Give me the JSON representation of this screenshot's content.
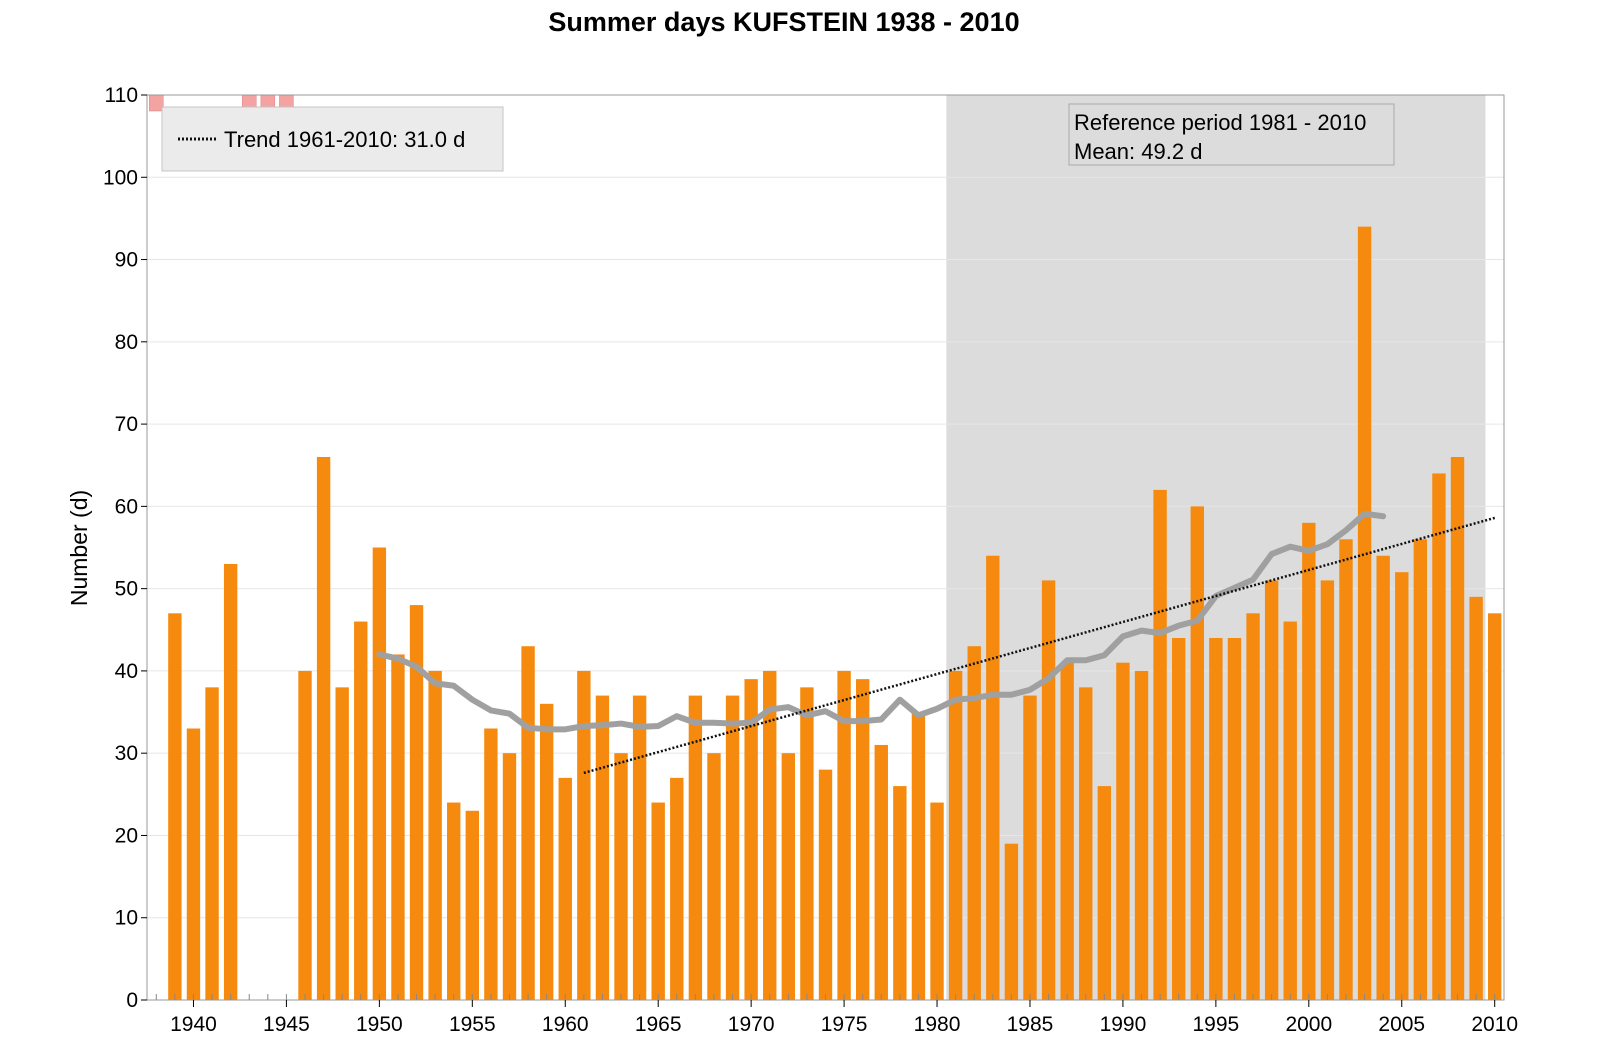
{
  "chart_data": {
    "type": "bar",
    "title": "Summer days KUFSTEIN 1938 - 2010",
    "ylabel": "Number (d)",
    "xlabel": "",
    "xlim": [
      1938,
      2010
    ],
    "ylim": [
      0,
      110
    ],
    "y_ticks": [
      0,
      10,
      20,
      30,
      40,
      50,
      60,
      70,
      80,
      90,
      100,
      110
    ],
    "x_ticks": [
      1940,
      1945,
      1950,
      1955,
      1960,
      1965,
      1970,
      1975,
      1980,
      1985,
      1990,
      1995,
      2000,
      2005,
      2010
    ],
    "grid": true,
    "colors": {
      "bars": "#f58a0f",
      "reference_shade": "#dcdcdc",
      "smoothed_line": "#a0a0a0",
      "trend_line": "#111111",
      "missing_marker": "#f4a3a3"
    },
    "series": [
      {
        "type": "bar",
        "x": [
          1939,
          1940,
          1941,
          1942,
          1943,
          1944,
          1945,
          1946,
          1947,
          1948,
          1949,
          1950,
          1951,
          1952,
          1953,
          1954,
          1955,
          1956,
          1957,
          1958,
          1959,
          1960,
          1961,
          1962,
          1963,
          1964,
          1965,
          1966,
          1967,
          1968,
          1969,
          1970,
          1971,
          1972,
          1973,
          1974,
          1975,
          1976,
          1977,
          1978,
          1979,
          1980,
          1981,
          1982,
          1983,
          1984,
          1985,
          1986,
          1987,
          1988,
          1989,
          1990,
          1991,
          1992,
          1993,
          1994,
          1995,
          1996,
          1997,
          1998,
          1999,
          2000,
          2001,
          2002,
          2003,
          2004,
          2005,
          2006,
          2007,
          2008,
          2009,
          2010
        ],
        "values": [
          47,
          33,
          38,
          53,
          null,
          null,
          null,
          40,
          66,
          38,
          46,
          55,
          42,
          48,
          40,
          24,
          23,
          33,
          30,
          43,
          36,
          27,
          40,
          37,
          30,
          37,
          24,
          27,
          37,
          30,
          37,
          39,
          40,
          30,
          38,
          28,
          40,
          39,
          31,
          26,
          35,
          24,
          40,
          43,
          54,
          19,
          37,
          51,
          41,
          38,
          26,
          41,
          40,
          62,
          44,
          60,
          44,
          44,
          47,
          51,
          46,
          58,
          51,
          56,
          94,
          54,
          52,
          56,
          64,
          66,
          49,
          47
        ]
      },
      {
        "type": "line",
        "style": "smoothed",
        "x": [
          1950,
          1951,
          1952,
          1953,
          1954,
          1955,
          1956,
          1957,
          1958,
          1959,
          1960,
          1961,
          1962,
          1963,
          1964,
          1965,
          1966,
          1967,
          1968,
          1969,
          1970,
          1971,
          1972,
          1973,
          1974,
          1975,
          1976,
          1977,
          1978,
          1979,
          1980,
          1981,
          1982,
          1983,
          1984,
          1985,
          1986,
          1987,
          1988,
          1989,
          1990,
          1991,
          1992,
          1993,
          1994,
          1995,
          1996,
          1997,
          1998,
          1999,
          2000,
          2001,
          2002,
          2003,
          2004
        ],
        "values": [
          42,
          41.5,
          40.5,
          38.5,
          38.2,
          36.5,
          35.2,
          34.8,
          33.1,
          32.9,
          32.9,
          33.3,
          33.4,
          33.6,
          33.2,
          33.3,
          34.5,
          33.7,
          33.7,
          33.6,
          33.7,
          35.3,
          35.6,
          34.6,
          35.1,
          33.9,
          33.9,
          34.1,
          36.5,
          34.6,
          35.4,
          36.5,
          36.7,
          37.1,
          37.1,
          37.7,
          39.1,
          41.3,
          41.3,
          41.9,
          44.2,
          44.9,
          44.6,
          45.5,
          46.1,
          49.1,
          50.1,
          51.1,
          54.2,
          55.1,
          54.6,
          55.4,
          57.1,
          59.1,
          58.8
        ]
      },
      {
        "type": "line",
        "style": "dotted",
        "name": "Trend 1961-2010: 31.0 d",
        "x": [
          1961,
          2010
        ],
        "values": [
          27.6,
          58.6
        ]
      }
    ],
    "missing_years": [
      1938,
      1943,
      1944,
      1945
    ],
    "reference_period": {
      "start": 1981,
      "end": 2010,
      "label": "Reference period 1981 - 2010",
      "mean_label": "Mean: 49.2 d"
    },
    "legend": {
      "entries": [
        "Trend 1961-2010: 31.0 d"
      ],
      "position": "top-left"
    }
  }
}
